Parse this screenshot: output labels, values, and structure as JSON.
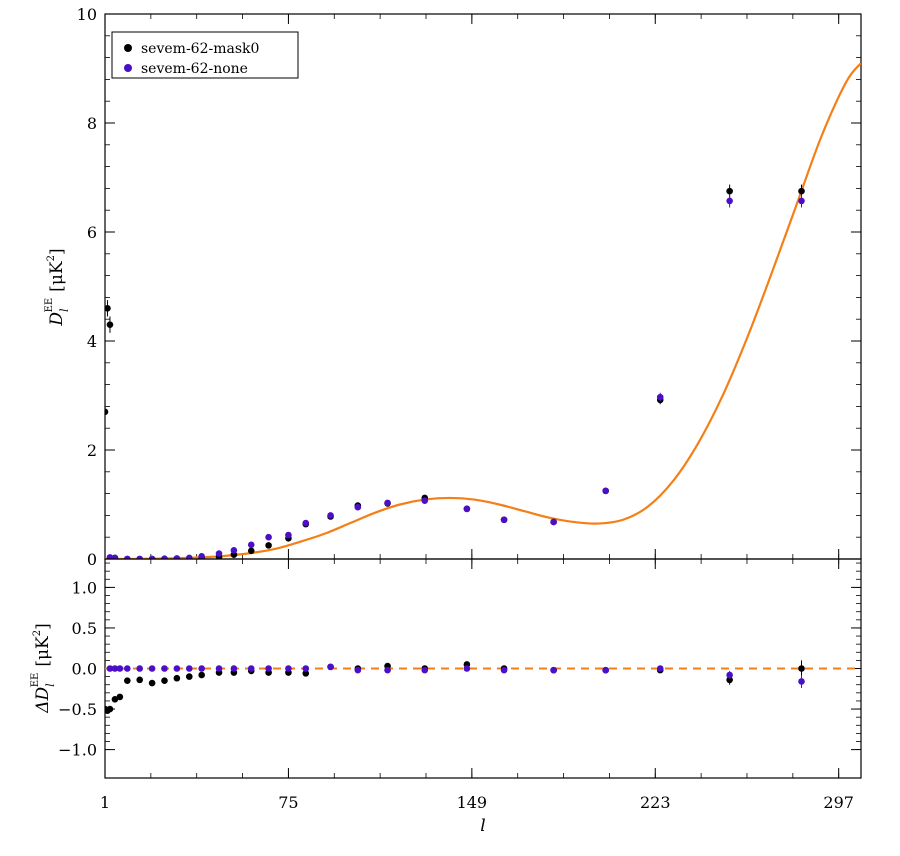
{
  "chart_data": [
    {
      "type": "scatter",
      "panel": "top",
      "ylabel_symbol": "D",
      "ylabel_subscript": "l",
      "ylabel_superscript": "EE",
      "ylabel_unit": "[μK",
      "ylabel_unit_power": "2",
      "ylabel_unit_close": "]",
      "xlim": [
        1,
        306
      ],
      "ylim": [
        0,
        10
      ],
      "xticks": [
        1,
        75,
        149,
        223,
        297
      ],
      "yticks": [
        0,
        2,
        4,
        6,
        8,
        10
      ],
      "yticklabels": [
        "0",
        "2",
        "4",
        "6",
        "8",
        "10"
      ],
      "legend": {
        "position": "top-left",
        "entries": [
          "sevem-62-mask0",
          "sevem-62-none"
        ],
        "colors": [
          "#000000",
          "#4b0fc7"
        ]
      },
      "model_curve": {
        "color": "#f57f17",
        "x": [
          1,
          10,
          20,
          30,
          40,
          50,
          60,
          70,
          80,
          90,
          100,
          110,
          120,
          130,
          140,
          150,
          160,
          170,
          180,
          190,
          200,
          210,
          220,
          230,
          240,
          250,
          260,
          270,
          280,
          290,
          300,
          306
        ],
        "y": [
          0.0,
          0.0,
          0.005,
          0.015,
          0.03,
          0.06,
          0.11,
          0.19,
          0.32,
          0.47,
          0.66,
          0.85,
          1.0,
          1.09,
          1.12,
          1.09,
          1.0,
          0.88,
          0.76,
          0.68,
          0.65,
          0.72,
          0.96,
          1.42,
          2.1,
          2.98,
          4.05,
          5.25,
          6.5,
          7.75,
          8.75,
          9.1
        ]
      },
      "series": [
        {
          "name": "sevem-62-mask0",
          "color": "#000000",
          "x": [
            1,
            2,
            3,
            5,
            10,
            15,
            20,
            25,
            30,
            35,
            40,
            47,
            53,
            60,
            67,
            75,
            82,
            92,
            103,
            115,
            130,
            147,
            162,
            182,
            203,
            225,
            253,
            282
          ],
          "y": [
            2.7,
            4.6,
            4.3,
            0.02,
            0.0,
            0.0,
            0.0,
            0.0,
            0.005,
            0.01,
            0.02,
            0.04,
            0.08,
            0.15,
            0.25,
            0.38,
            0.64,
            0.78,
            0.98,
            1.02,
            1.12,
            0.92,
            0.72,
            0.68,
            1.25,
            2.92,
            6.75,
            6.75
          ],
          "err": [
            0.15,
            0.15,
            0.15,
            0.02,
            0.01,
            0.01,
            0.01,
            0.01,
            0.01,
            0.01,
            0.01,
            0.02,
            0.02,
            0.02,
            0.03,
            0.03,
            0.03,
            0.04,
            0.04,
            0.04,
            0.05,
            0.04,
            0.04,
            0.04,
            0.05,
            0.08,
            0.12,
            0.12
          ]
        },
        {
          "name": "sevem-62-none",
          "color": "#4b0fc7",
          "x": [
            3,
            5,
            10,
            15,
            20,
            25,
            30,
            35,
            40,
            47,
            53,
            60,
            67,
            75,
            82,
            92,
            103,
            115,
            130,
            147,
            162,
            182,
            203,
            225,
            253,
            282
          ],
          "y": [
            0.03,
            0.02,
            0.0,
            0.0,
            0.0,
            0.005,
            0.01,
            0.02,
            0.05,
            0.1,
            0.16,
            0.26,
            0.4,
            0.44,
            0.66,
            0.8,
            0.95,
            1.03,
            1.07,
            0.92,
            0.72,
            0.68,
            1.25,
            2.97,
            6.57,
            6.57
          ],
          "err": [
            0.02,
            0.02,
            0.01,
            0.01,
            0.01,
            0.01,
            0.01,
            0.01,
            0.02,
            0.02,
            0.02,
            0.03,
            0.03,
            0.03,
            0.03,
            0.04,
            0.04,
            0.04,
            0.05,
            0.04,
            0.04,
            0.04,
            0.05,
            0.08,
            0.12,
            0.12
          ]
        }
      ]
    },
    {
      "type": "scatter",
      "panel": "bottom",
      "ylabel_symbol": "ΔD",
      "ylabel_subscript": "l",
      "ylabel_superscript": "EE",
      "ylabel_unit": "[μK",
      "ylabel_unit_power": "2",
      "ylabel_unit_close": "]",
      "xlabel": "l",
      "xlim": [
        1,
        306
      ],
      "ylim": [
        -1.35,
        1.35
      ],
      "xticks": [
        1,
        75,
        149,
        223,
        297
      ],
      "xticklabels": [
        "1",
        "75",
        "149",
        "223",
        "297"
      ],
      "yticks": [
        -1.0,
        -0.5,
        0.0,
        0.5,
        1.0
      ],
      "yticklabels": [
        "−1.0",
        "−0.5",
        "0.0",
        "0.5",
        "1.0"
      ],
      "reference_line": {
        "y": 0.0,
        "color": "#f57f17",
        "style": "dashed"
      },
      "series": [
        {
          "name": "sevem-62-mask0",
          "color": "#000000",
          "x": [
            1,
            2,
            3,
            5,
            7,
            10,
            15,
            20,
            25,
            30,
            35,
            40,
            47,
            53,
            60,
            67,
            75,
            82,
            92,
            103,
            115,
            130,
            147,
            162,
            182,
            203,
            225,
            253,
            282
          ],
          "y": [
            -0.5,
            -0.52,
            -0.5,
            -0.38,
            -0.35,
            -0.15,
            -0.14,
            -0.18,
            -0.15,
            -0.12,
            -0.1,
            -0.08,
            -0.05,
            -0.05,
            -0.03,
            -0.05,
            -0.05,
            -0.06,
            0.02,
            0.0,
            0.03,
            0.0,
            0.05,
            0.0,
            -0.02,
            -0.02,
            -0.02,
            -0.14,
            0.0
          ],
          "err": [
            0.02,
            0.02,
            0.02,
            0.03,
            0.03,
            0.02,
            0.02,
            0.02,
            0.02,
            0.02,
            0.02,
            0.02,
            0.02,
            0.02,
            0.02,
            0.02,
            0.02,
            0.02,
            0.02,
            0.02,
            0.03,
            0.03,
            0.03,
            0.03,
            0.03,
            0.03,
            0.03,
            0.06,
            0.1
          ]
        },
        {
          "name": "sevem-62-none",
          "color": "#4b0fc7",
          "x": [
            3,
            5,
            7,
            10,
            15,
            20,
            25,
            30,
            35,
            40,
            47,
            53,
            60,
            67,
            75,
            82,
            92,
            103,
            115,
            130,
            147,
            162,
            182,
            203,
            225,
            253,
            282
          ],
          "y": [
            0.0,
            0.0,
            0.0,
            0.0,
            0.0,
            0.0,
            0.0,
            0.0,
            0.0,
            0.0,
            0.0,
            0.0,
            0.0,
            0.0,
            0.0,
            0.0,
            0.02,
            -0.02,
            -0.02,
            -0.02,
            0.0,
            -0.02,
            -0.02,
            -0.02,
            0.0,
            -0.08,
            -0.16
          ],
          "err": [
            0.01,
            0.01,
            0.01,
            0.01,
            0.01,
            0.01,
            0.01,
            0.01,
            0.01,
            0.01,
            0.01,
            0.01,
            0.01,
            0.01,
            0.01,
            0.01,
            0.02,
            0.02,
            0.02,
            0.02,
            0.02,
            0.02,
            0.02,
            0.02,
            0.02,
            0.05,
            0.08
          ]
        }
      ]
    }
  ]
}
